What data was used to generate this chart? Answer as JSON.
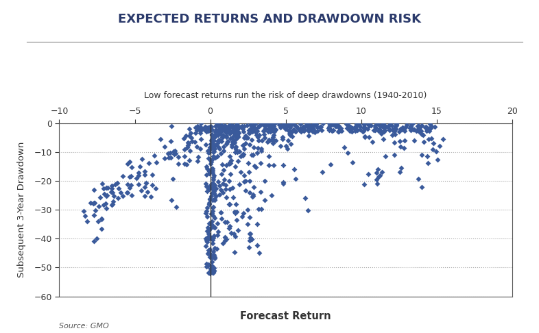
{
  "title": "EXPECTED RETURNS AND DRAWDOWN RISK",
  "subtitle": "Low forecast returns run the risk of deep drawdowns (1940-2010)",
  "xlabel": "Forecast Return",
  "ylabel": "Subsequent 3-Year Drawdown",
  "source": "Source: GMO",
  "xlim": [
    -10,
    20
  ],
  "ylim": [
    -60,
    0
  ],
  "xticks": [
    -10,
    -5,
    0,
    5,
    10,
    15,
    20
  ],
  "yticks": [
    0,
    -10,
    -20,
    -30,
    -40,
    -50,
    -60
  ],
  "vline_x": 0,
  "dot_color": "#3A5A9B",
  "background_color": "#FFFFFF",
  "title_color": "#2B3A6B",
  "marker_size": 16,
  "seed": 42
}
